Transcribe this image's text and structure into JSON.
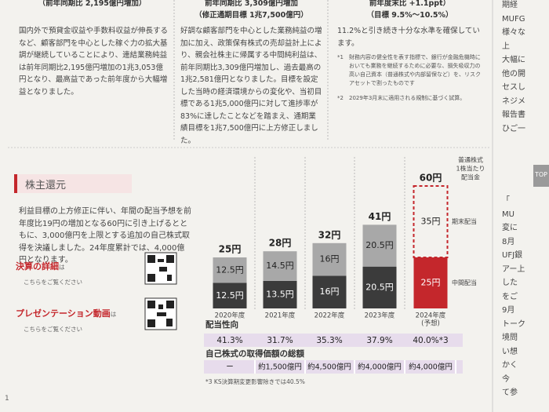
{
  "top_columns": [
    {
      "header": [
        "（前年同期比 2,195億円増加）"
      ],
      "body": "国内外で預貸金収益や手数料収益が伸長するなど、顧客部門を中心とした稼ぐ力の拡大基調が継続していることにより、連結業務純益は前年同期比2,195億円増加の1兆3,053億円となり、最高益であった前年度から大幅増益となりました。"
    },
    {
      "header": [
        "前年同期比 3,309億円増加",
        "（修正通期目標 1兆7,500億円）"
      ],
      "body": "好調な顧客部門を中心とした業務純益の増加に加え、政策保有株式の売却益計上により、親会社株主に帰属する中間純利益は、前年同期比3,309億円増加し、過去最高の1兆2,581億円となりました。目標を設定した当時の経済環境からの変化や、当初目標である1兆5,000億円に対して進捗率が83%に達したことなどを踏まえ、通期業績目標を1兆7,500億円に上方修正しました。"
    },
    {
      "header": [
        "前年度末比 +1.1ppt）",
        "（目標 9.5%〜10.5%）"
      ],
      "body": "11.2%と引き続き十分な水準を確保しています。",
      "notes": [
        {
          "mark": "*1",
          "text": "財務内容の健全性を表す指標で、銀行が金融危機時においても業務を継続するために必要な、損失吸収力の高い自己資本（普通株式や内部留保など）を、リスクアセットで割ったものです"
        },
        {
          "mark": "*2",
          "text": "2029年3月末に適用される規制に基づく試算。"
        }
      ]
    }
  ],
  "section": {
    "title": "株主還元",
    "body": "利益目標の上方修正に伴い、年間の配当予想を前年度比19円の増加となる60円に引き上げるとともに、3,000億円を上限とする追加の自己株式取得を決議しました。24年度累計では、4,000億円となります。",
    "links": [
      {
        "label": "決算の詳細",
        "suffix": "は",
        "sub": "こちらをご覧ください"
      },
      {
        "label": "プレゼンテーション動画",
        "suffix": "は",
        "sub": "こちらをご覧ください"
      }
    ]
  },
  "chart_data": {
    "type": "bar",
    "stacked": true,
    "categories": [
      "2020年度",
      "2021年度",
      "2022年度",
      "2023年度",
      "2024年度"
    ],
    "category_notes": [
      null,
      null,
      null,
      null,
      "(予想)"
    ],
    "series": [
      {
        "name": "中間配当",
        "values": [
          12.5,
          13.5,
          16,
          20.5,
          25
        ],
        "value_labels": [
          "12.5円",
          "13.5円",
          "16円",
          "20.5円",
          "25円"
        ],
        "colors": [
          "#3b3b3b",
          "#3b3b3b",
          "#3b3b3b",
          "#3b3b3b",
          "#c4272c"
        ],
        "label_colors": [
          "#fff",
          "#fff",
          "#fff",
          "#fff",
          "#fff"
        ],
        "dashed": [
          false,
          false,
          false,
          false,
          false
        ]
      },
      {
        "name": "期末配当",
        "values": [
          12.5,
          14.5,
          16,
          20.5,
          35
        ],
        "value_labels": [
          "12.5円",
          "14.5円",
          "16円",
          "20.5円",
          "35円"
        ],
        "colors": [
          "#a8a8a8",
          "#a8a8a8",
          "#a8a8a8",
          "#a8a8a8",
          "#c4272c"
        ],
        "label_colors": [
          "#222",
          "#222",
          "#222",
          "#222",
          "#222"
        ],
        "dashed": [
          false,
          false,
          false,
          false,
          true
        ]
      }
    ],
    "totals": {
      "values": [
        25,
        28,
        32,
        41,
        60
      ],
      "value_labels": [
        "25円",
        "28円",
        "32円",
        "41円",
        "60円"
      ]
    },
    "legend_title": [
      "普通株式",
      "1株当たり",
      "配当金"
    ],
    "rows": [
      {
        "label": "配当性向",
        "cells": [
          "41.3%",
          "31.7%",
          "35.3%",
          "37.9%",
          "40.0%*3"
        ],
        "color": "#e7dcec"
      },
      {
        "label": "自己株式の取得価額の総額",
        "cells": [
          "ー",
          "約1,500億円",
          "約4,500億円",
          "約4,000億円",
          "約4,000億円"
        ],
        "color": "#e7dcec"
      }
    ],
    "footnote": "*3 KS決算期変更影響除きでは40.5%"
  },
  "right_column": {
    "lines": [
      "期経",
      "MUFG",
      "様々な",
      "上",
      "大幅に",
      "他の開",
      "セスし",
      "ネジメ",
      "報告書",
      "ひご一"
    ],
    "tab": "TOP",
    "lines2": [
      "「",
      "MU",
      "変に",
      "8月",
      "UFJ銀",
      "アー上",
      "した",
      "をご",
      "9月",
      "トーク",
      "境問",
      "い想",
      "かく",
      "今",
      "て参"
    ]
  },
  "page_number": "1"
}
